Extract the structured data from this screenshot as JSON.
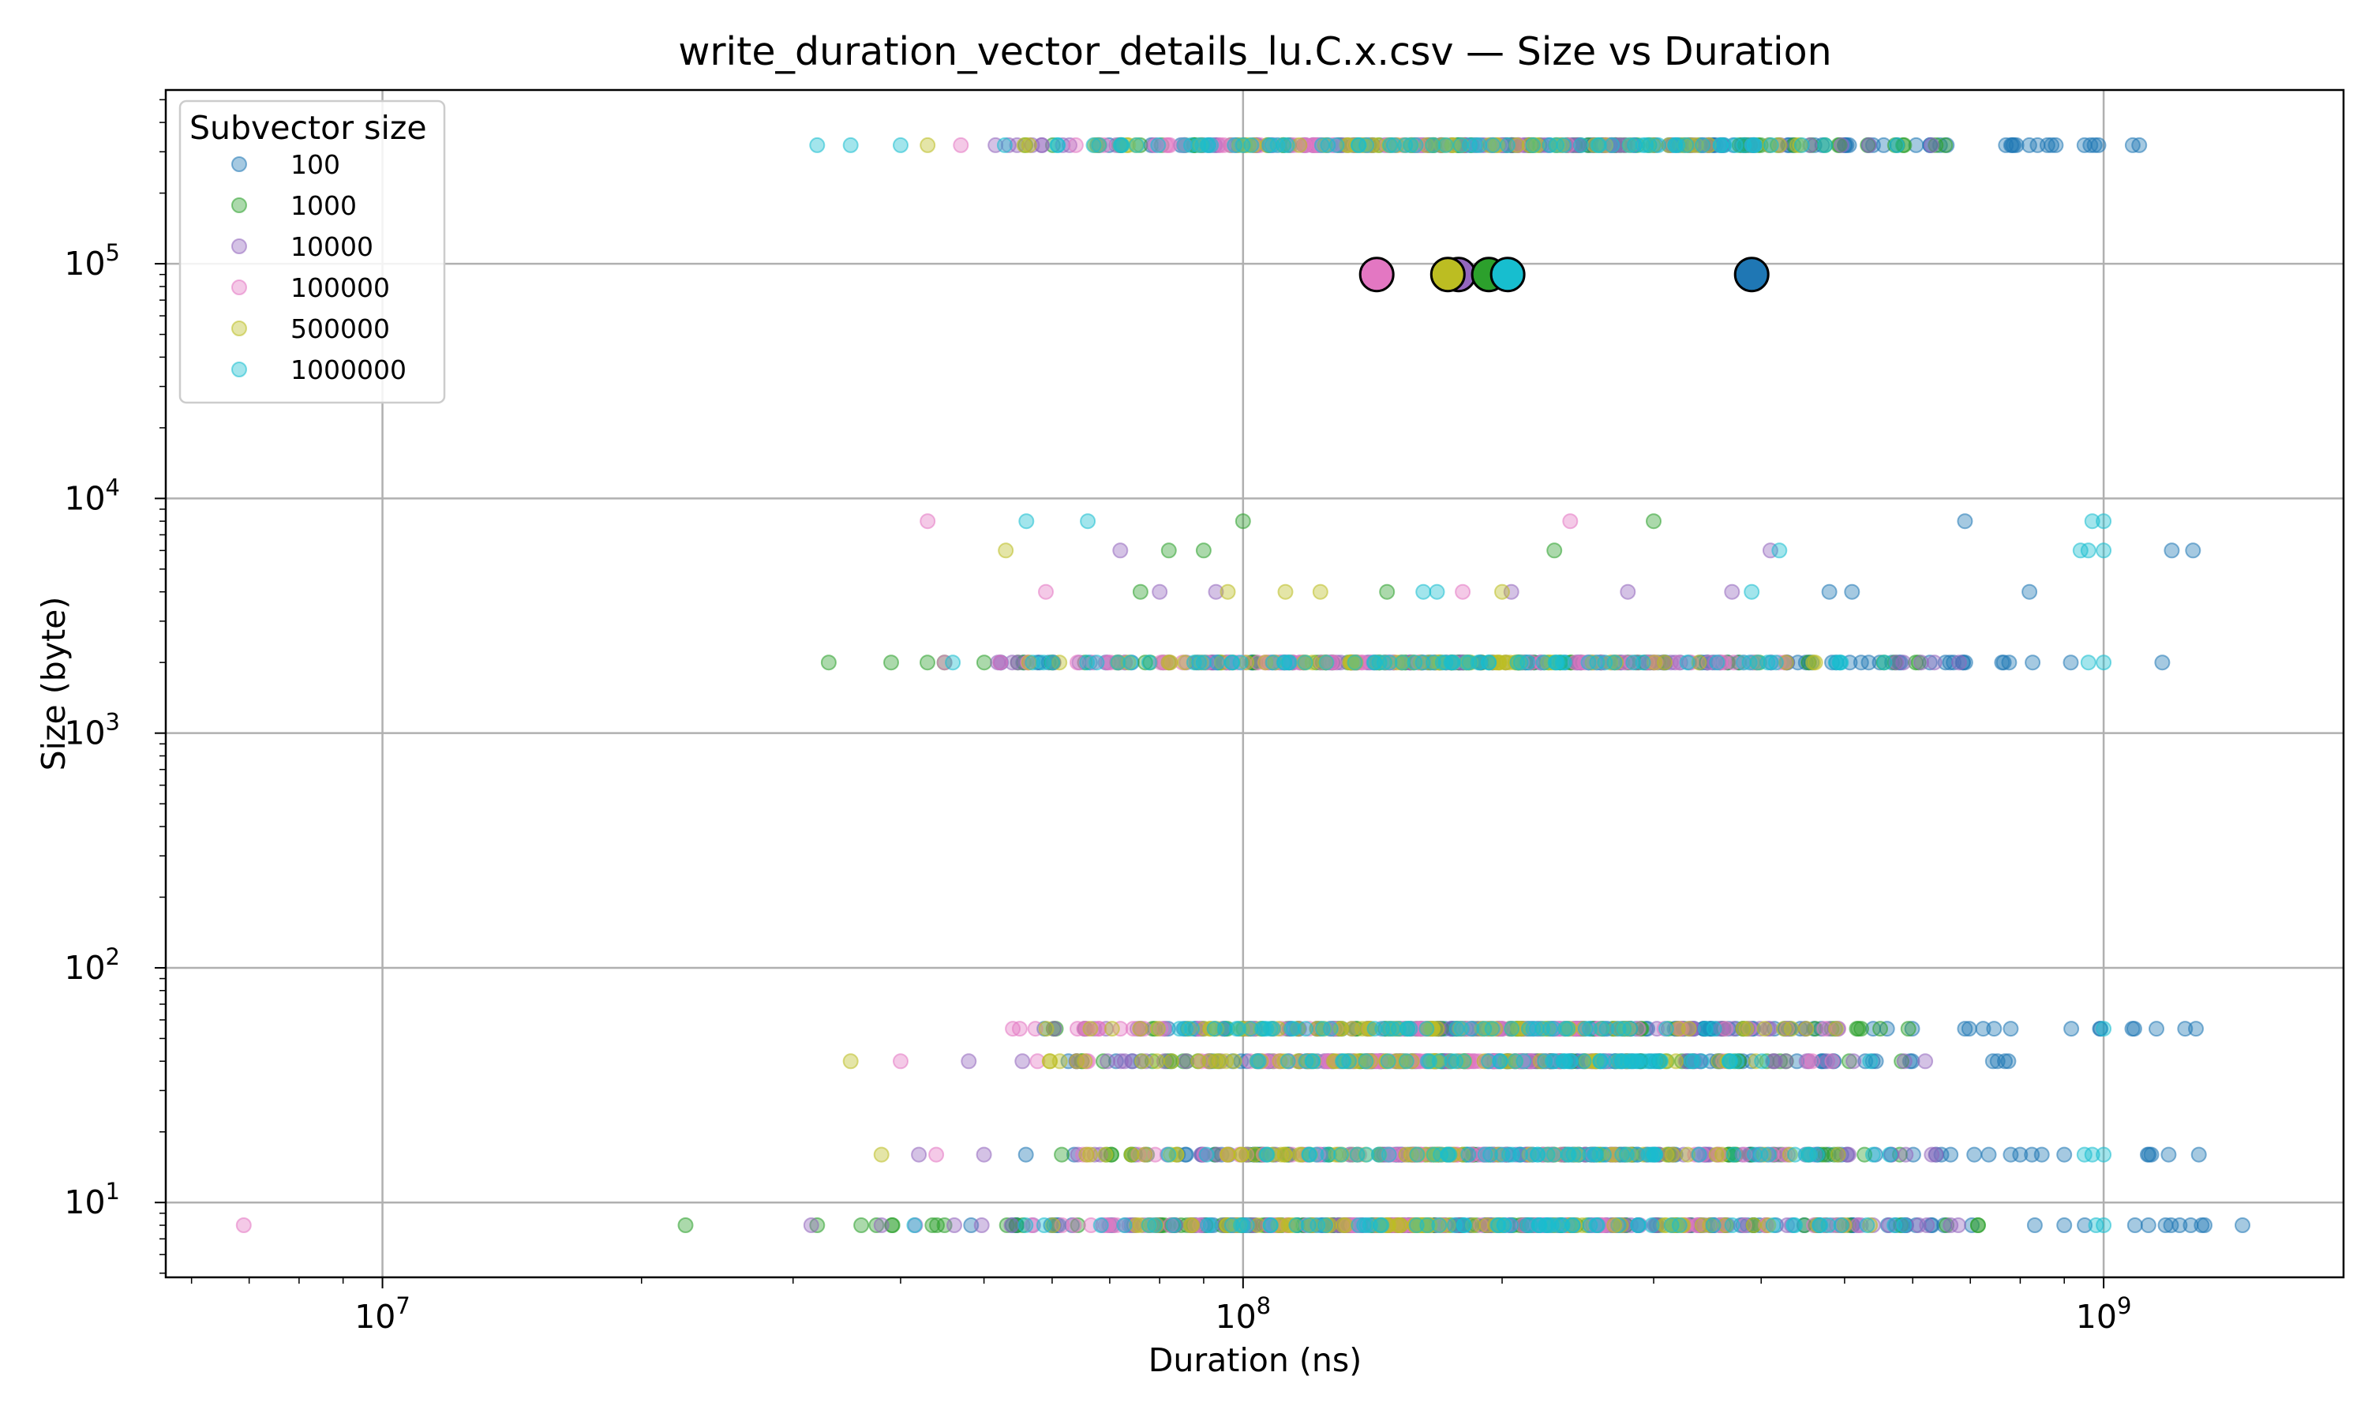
{
  "chart_data": {
    "type": "scatter",
    "title": "write_duration_vector_details_lu.C.x.csv — Size vs Duration",
    "xlabel": "Duration (ns)",
    "ylabel": "Size (byte)",
    "xscale": "log",
    "yscale": "log",
    "xlim": [
      5600000,
      1900000000
    ],
    "ylim": [
      4.8,
      550000
    ],
    "x_ticks": [
      {
        "value": 10000000,
        "label": "10^7"
      },
      {
        "value": 100000000,
        "label": "10^8"
      },
      {
        "value": 1000000000,
        "label": "10^9"
      }
    ],
    "y_ticks": [
      {
        "value": 10,
        "label": "10^1"
      },
      {
        "value": 100,
        "label": "10^2"
      },
      {
        "value": 1000,
        "label": "10^3"
      },
      {
        "value": 10000,
        "label": "10^4"
      },
      {
        "value": 100000,
        "label": "10^5"
      }
    ],
    "grid": true,
    "legend": {
      "title": "Subvector size",
      "placement": "top-left"
    },
    "series": [
      {
        "name": "100",
        "color": "#1f77b4",
        "bands": [
          {
            "y": 320000,
            "xmin": 60000000,
            "xmax": 1100000000
          },
          {
            "y": 2000,
            "xmin": 50000000,
            "xmax": 1170000000
          },
          {
            "y": 8,
            "xmin": 45000000,
            "xmax": 1450000000
          },
          {
            "y": 16,
            "xmin": 55000000,
            "xmax": 1200000000
          },
          {
            "y": 40,
            "xmin": 50000000,
            "xmax": 800000000
          },
          {
            "y": 55,
            "xmin": 55000000,
            "xmax": 1300000000
          }
        ],
        "sparse": [
          [
            1100000000,
            320000
          ],
          [
            950000000,
            320000
          ],
          [
            870000000,
            320000
          ],
          [
            1170000000,
            2000
          ],
          [
            1200000000,
            6000
          ],
          [
            1270000000,
            6000
          ],
          [
            820000000,
            4000
          ],
          [
            690000000,
            8000
          ],
          [
            480000000,
            4000
          ],
          [
            510000000,
            4000
          ],
          [
            690000000,
            55
          ],
          [
            780000000,
            55
          ],
          [
            1080000000,
            55
          ],
          [
            1280000000,
            55
          ],
          [
            780000000,
            16
          ],
          [
            900000000,
            16
          ],
          [
            1190000000,
            16
          ],
          [
            1290000000,
            16
          ],
          [
            1180000000,
            8
          ],
          [
            1450000000,
            8
          ],
          [
            900000000,
            8
          ],
          [
            1300000000,
            8
          ]
        ],
        "mean": [
          390000000,
          90000
        ]
      },
      {
        "name": "1000",
        "color": "#2ca02c",
        "bands": [
          {
            "y": 320000,
            "xmin": 55000000,
            "xmax": 700000000
          },
          {
            "y": 2000,
            "xmin": 40000000,
            "xmax": 720000000
          },
          {
            "y": 8,
            "xmin": 36000000,
            "xmax": 800000000
          },
          {
            "y": 16,
            "xmin": 60000000,
            "xmax": 600000000
          },
          {
            "y": 40,
            "xmin": 55000000,
            "xmax": 650000000
          },
          {
            "y": 55,
            "xmin": 60000000,
            "xmax": 600000000
          }
        ],
        "sparse": [
          [
            33000000,
            2000
          ],
          [
            39000000,
            2000
          ],
          [
            22500000,
            8
          ],
          [
            32000000,
            8
          ],
          [
            36000000,
            8
          ],
          [
            37500000,
            8
          ],
          [
            76000000,
            4000
          ],
          [
            147000000,
            4000
          ],
          [
            82000000,
            6000
          ],
          [
            100000000,
            8000
          ],
          [
            90000000,
            6000
          ],
          [
            550000000,
            55
          ],
          [
            300000000,
            8000
          ],
          [
            230000000,
            6000
          ]
        ],
        "mean": [
          193000000,
          90000
        ]
      },
      {
        "name": "10000",
        "color": "#9467bd",
        "bands": [
          {
            "y": 320000,
            "xmin": 50000000,
            "xmax": 700000000
          },
          {
            "y": 2000,
            "xmin": 50000000,
            "xmax": 700000000
          },
          {
            "y": 8,
            "xmin": 38000000,
            "xmax": 800000000
          },
          {
            "y": 16,
            "xmin": 60000000,
            "xmax": 650000000
          },
          {
            "y": 40,
            "xmin": 48000000,
            "xmax": 650000000
          },
          {
            "y": 55,
            "xmin": 58000000,
            "xmax": 550000000
          }
        ],
        "sparse": [
          [
            31500000,
            8
          ],
          [
            38000000,
            8
          ],
          [
            42000000,
            16
          ],
          [
            50000000,
            16
          ],
          [
            48000000,
            40
          ],
          [
            80000000,
            4000
          ],
          [
            93000000,
            4000
          ],
          [
            280000000,
            4000
          ],
          [
            370000000,
            4000
          ],
          [
            72000000,
            6000
          ],
          [
            410000000,
            6000
          ],
          [
            205000000,
            4000
          ]
        ],
        "mean": [
          178000000,
          90000
        ]
      },
      {
        "name": "100000",
        "color": "#e377c2",
        "bands": [
          {
            "y": 320000,
            "xmin": 50000000,
            "xmax": 280000000
          },
          {
            "y": 2000,
            "xmin": 45000000,
            "xmax": 600000000
          },
          {
            "y": 8,
            "xmin": 50000000,
            "xmax": 600000000
          },
          {
            "y": 16,
            "xmin": 60000000,
            "xmax": 500000000
          },
          {
            "y": 40,
            "xmin": 55000000,
            "xmax": 500000000
          },
          {
            "y": 55,
            "xmin": 55000000,
            "xmax": 500000000
          }
        ],
        "sparse": [
          [
            6900000,
            8
          ],
          [
            44000000,
            16
          ],
          [
            40000000,
            40
          ],
          [
            43000000,
            8000
          ],
          [
            59000000,
            4000
          ],
          [
            47000000,
            320000
          ],
          [
            45000000,
            2000
          ],
          [
            180000000,
            4000
          ],
          [
            240000000,
            8000
          ],
          [
            54000000,
            55
          ]
        ],
        "mean": [
          143000000,
          90000
        ]
      },
      {
        "name": "500000",
        "color": "#bcbd22",
        "bands": [
          {
            "y": 320000,
            "xmin": 55000000,
            "xmax": 450000000
          },
          {
            "y": 2000,
            "xmin": 55000000,
            "xmax": 500000000
          },
          {
            "y": 8,
            "xmin": 55000000,
            "xmax": 550000000
          },
          {
            "y": 16,
            "xmin": 60000000,
            "xmax": 500000000
          },
          {
            "y": 40,
            "xmin": 55000000,
            "xmax": 450000000
          },
          {
            "y": 55,
            "xmin": 52000000,
            "xmax": 500000000
          }
        ],
        "sparse": [
          [
            43000000,
            320000
          ],
          [
            38000000,
            16
          ],
          [
            35000000,
            40
          ],
          [
            53000000,
            6000
          ],
          [
            112000000,
            4000
          ],
          [
            123000000,
            4000
          ],
          [
            200000000,
            4000
          ],
          [
            270000000,
            8
          ],
          [
            96000000,
            4000
          ]
        ],
        "mean": [
          173000000,
          90000
        ]
      },
      {
        "name": "1000000",
        "color": "#17becf",
        "bands": [
          {
            "y": 320000,
            "xmin": 52000000,
            "xmax": 650000000
          },
          {
            "y": 2000,
            "xmin": 55000000,
            "xmax": 600000000
          },
          {
            "y": 8,
            "xmin": 55000000,
            "xmax": 600000000
          },
          {
            "y": 16,
            "xmin": 80000000,
            "xmax": 600000000
          },
          {
            "y": 40,
            "xmin": 80000000,
            "xmax": 600000000
          },
          {
            "y": 55,
            "xmin": 80000000,
            "xmax": 450000000
          }
        ],
        "sparse": [
          [
            32000000,
            320000
          ],
          [
            35000000,
            320000
          ],
          [
            40000000,
            320000
          ],
          [
            41500000,
            8
          ],
          [
            46000000,
            2000
          ],
          [
            56000000,
            8000
          ],
          [
            66000000,
            8000
          ],
          [
            162000000,
            4000
          ],
          [
            168000000,
            4000
          ],
          [
            390000000,
            4000
          ],
          [
            420000000,
            6000
          ],
          [
            940000000,
            6000
          ],
          [
            960000000,
            6000
          ],
          [
            1000000000,
            6000
          ],
          [
            970000000,
            8000
          ],
          [
            1000000000,
            8000
          ],
          [
            1000000000,
            55
          ],
          [
            950000000,
            16
          ],
          [
            970000000,
            16
          ],
          [
            1000000000,
            16
          ],
          [
            960000000,
            2000
          ],
          [
            1000000000,
            2000
          ],
          [
            980000000,
            8
          ],
          [
            1000000000,
            8
          ]
        ],
        "mean": [
          203000000,
          90000
        ]
      }
    ]
  }
}
